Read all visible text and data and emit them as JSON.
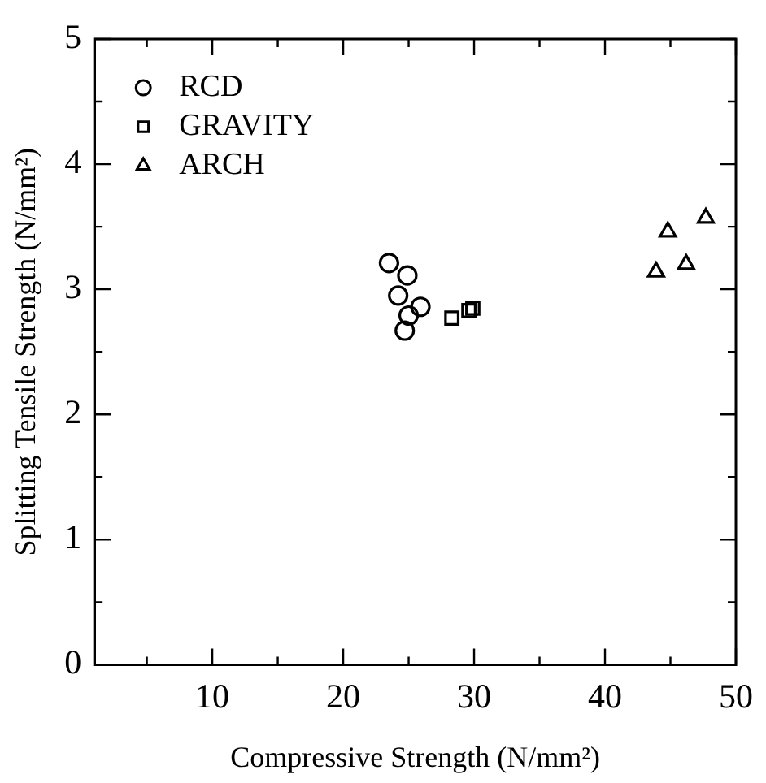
{
  "chart_data": {
    "type": "scatter",
    "xlabel": "Compressive Strength (N/mm²)",
    "ylabel": "Splitting Tensile Strength (N/mm²)",
    "xlim": [
      1,
      50
    ],
    "xticks": [
      {
        "value": 5,
        "label": null
      },
      10,
      {
        "value": 15,
        "label": null
      },
      20,
      {
        "value": 25,
        "label": null
      },
      30,
      {
        "value": 35,
        "label": null
      },
      40,
      {
        "value": 45,
        "label": null
      },
      50
    ],
    "ylim": [
      0,
      5
    ],
    "yticks": [
      0,
      {
        "value": 0.5,
        "label": null
      },
      1,
      {
        "value": 1.5,
        "label": null
      },
      2,
      {
        "value": 2.5,
        "label": null
      },
      3,
      {
        "value": 3.5,
        "label": null
      },
      4,
      {
        "value": 4.5,
        "label": null
      },
      5
    ],
    "grid": false,
    "legend": "top left",
    "series": [
      {
        "name": "RCD",
        "color": "#000000",
        "marker": "circle",
        "x": [
          23.5,
          24.9,
          24.2,
          25.9,
          25.0,
          24.7
        ],
        "values": [
          3.21,
          3.11,
          2.95,
          2.86,
          2.79,
          2.67
        ]
      },
      {
        "name": "GRAVITY",
        "color": "#000000",
        "marker": "square",
        "x": [
          28.3,
          29.6,
          29.9
        ],
        "values": [
          2.77,
          2.83,
          2.85
        ]
      },
      {
        "name": "ARCH",
        "color": "#000000",
        "marker": "triangle",
        "x": [
          43.9,
          44.8,
          46.2,
          47.7
        ],
        "values": [
          3.14,
          3.46,
          3.2,
          3.57
        ]
      }
    ]
  }
}
